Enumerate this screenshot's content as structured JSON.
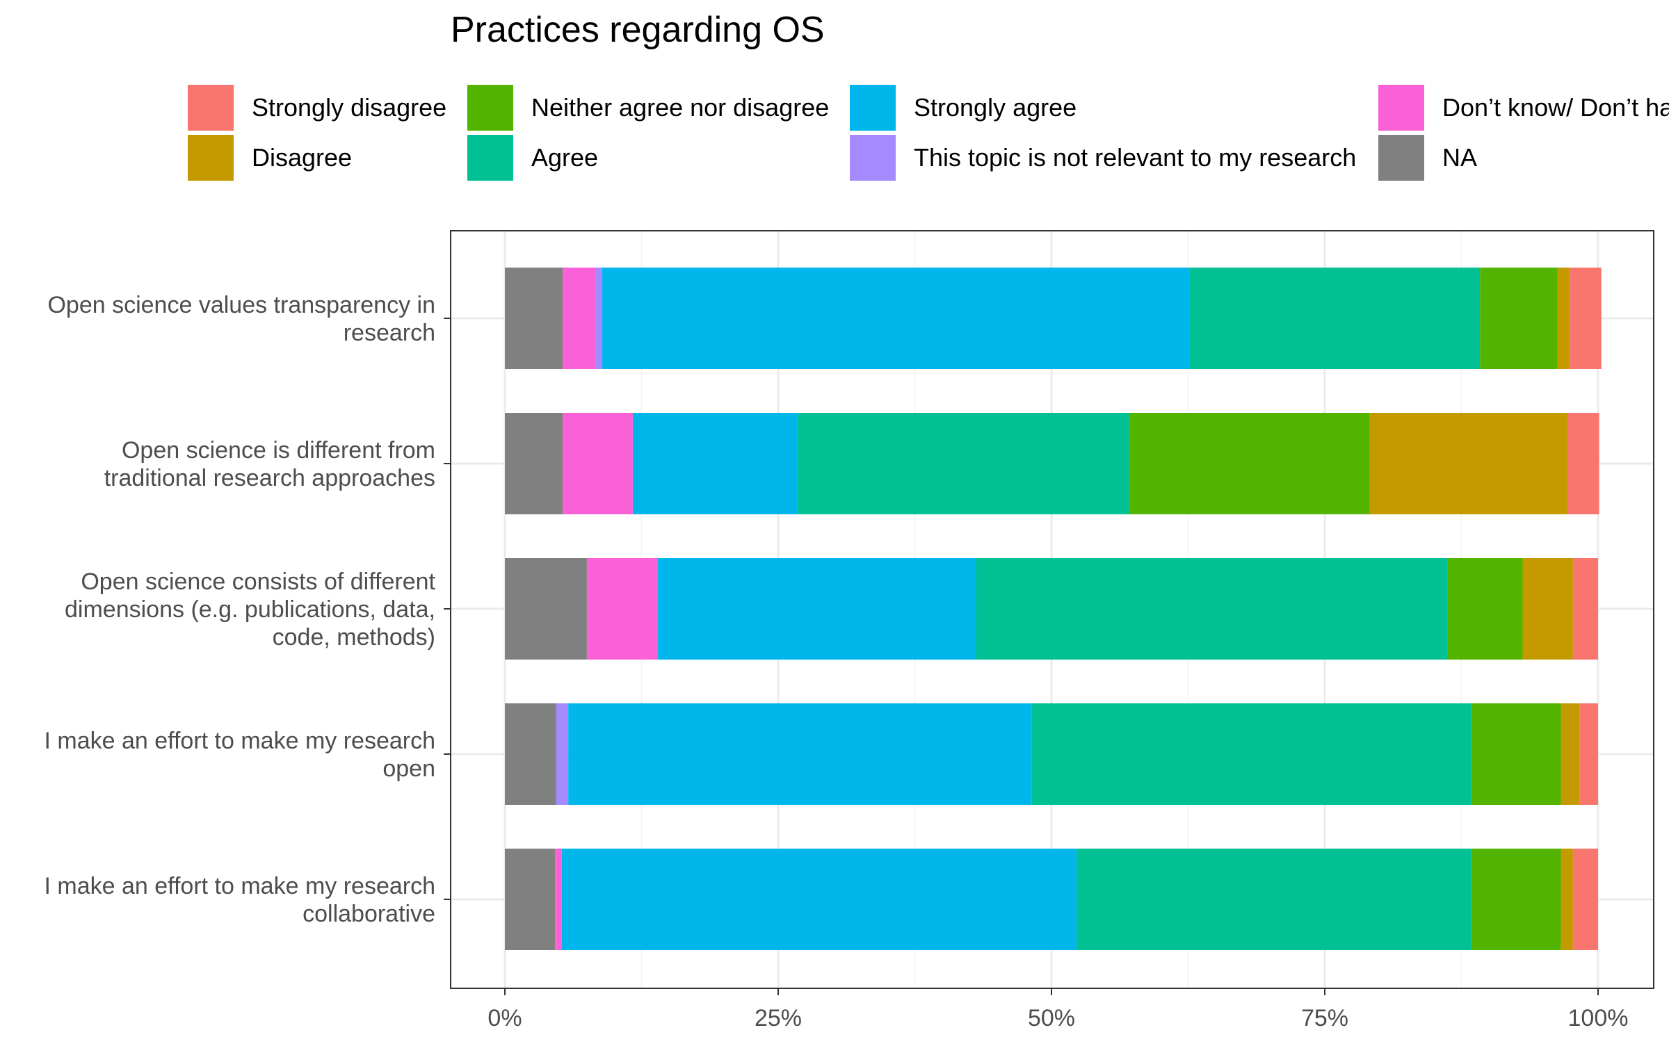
{
  "chart_data": {
    "type": "bar",
    "orientation": "horizontal",
    "stacked": true,
    "title": "Practices regarding OS",
    "xlabel": "",
    "ylabel": "",
    "xlim": [
      0,
      100
    ],
    "x_ticks": [
      0,
      25,
      50,
      75,
      100
    ],
    "x_tick_labels": [
      "0%",
      "25%",
      "50%",
      "75%",
      "100%"
    ],
    "grid": true,
    "legend_position": "top",
    "categories": [
      [
        "Open science values transparency in",
        "research"
      ],
      [
        "Open science is different from",
        "traditional research approaches"
      ],
      [
        "Open science consists of different",
        "dimensions (e.g. publications, data,",
        "code, methods)"
      ],
      [
        "I make an effort to make my research",
        "open"
      ],
      [
        "I make an effort to make my research",
        "collaborative"
      ]
    ],
    "stack_order": [
      "NA",
      "Don’t know/ Don’t have an opinion",
      "This topic is not relevant to my research",
      "Strongly agree",
      "Agree",
      "Neither agree nor disagree",
      "Disagree",
      "Strongly disagree"
    ],
    "series": [
      {
        "name": "Strongly disagree",
        "color": "#F8766D",
        "values": [
          2.9,
          2.9,
          2.3,
          1.7,
          2.3
        ]
      },
      {
        "name": "Disagree",
        "color": "#C49A00",
        "values": [
          1.1,
          18.1,
          4.6,
          1.7,
          1.1
        ]
      },
      {
        "name": "Neither agree nor disagree",
        "color": "#53B400",
        "values": [
          7.1,
          22.0,
          6.9,
          8.2,
          8.2
        ]
      },
      {
        "name": "Agree",
        "color": "#00C094",
        "values": [
          26.6,
          30.3,
          43.1,
          40.2,
          36.1
        ]
      },
      {
        "name": "Strongly agree",
        "color": "#00B6EB",
        "values": [
          53.7,
          15.1,
          29.1,
          42.4,
          47.1
        ]
      },
      {
        "name": "This topic is not relevant to my research",
        "color": "#A58AFF",
        "values": [
          0.6,
          0.0,
          0.0,
          1.1,
          0.0
        ]
      },
      {
        "name": "Don’t know/ Don’t have an opinion",
        "color": "#FB61D7",
        "values": [
          3.0,
          6.4,
          6.5,
          0.0,
          0.6
        ]
      },
      {
        "name": "NA",
        "color": "#808080",
        "values": [
          5.3,
          5.3,
          7.5,
          4.7,
          4.6
        ]
      }
    ]
  },
  "legend": {
    "columns": [
      [
        "Strongly disagree",
        "Disagree"
      ],
      [
        "Neither agree nor disagree",
        "Agree"
      ],
      [
        "Strongly agree",
        "This topic is not relevant to my research"
      ],
      [
        "Don’t know/ Don’t have an opinion",
        "NA"
      ]
    ]
  }
}
